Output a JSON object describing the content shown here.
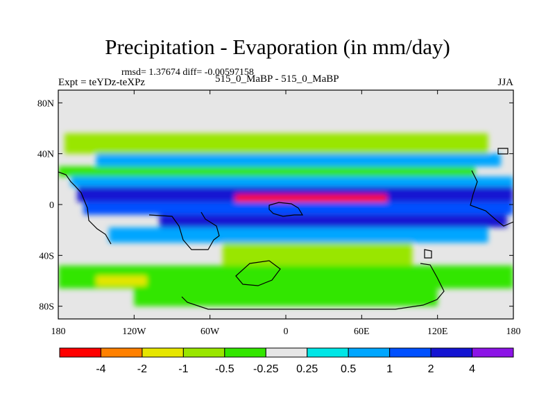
{
  "chart_data": {
    "type": "heatmap",
    "title": "Precipitation - Evaporation (in mm/day)",
    "stats_text": "rmsd= 1.37674 diff= -0.00597158",
    "experiment_label": "Expt = teYDz-teXPz",
    "case_label": "515_0_MaBP - 515_0_MaBP",
    "season_label": "JJA",
    "x_range": [
      -180,
      180
    ],
    "y_range": [
      -90,
      90
    ],
    "x_ticks": [
      {
        "value": -180,
        "label": "180"
      },
      {
        "value": -120,
        "label": "120W"
      },
      {
        "value": -60,
        "label": "60W"
      },
      {
        "value": 0,
        "label": "0"
      },
      {
        "value": 60,
        "label": "60E"
      },
      {
        "value": 120,
        "label": "120E"
      },
      {
        "value": 180,
        "label": "180"
      }
    ],
    "y_ticks": [
      {
        "value": 80,
        "label": "80N"
      },
      {
        "value": 40,
        "label": "40N"
      },
      {
        "value": 0,
        "label": "0"
      },
      {
        "value": -40,
        "label": "40S"
      },
      {
        "value": -80,
        "label": "80S"
      }
    ],
    "levels": [
      "-4",
      "-2",
      "-1",
      "-0.5",
      "-0.25",
      "0.25",
      "0.5",
      "1",
      "2",
      "4"
    ],
    "colors": [
      "#ff0000",
      "#ff8000",
      "#e6e600",
      "#99e600",
      "#33e600",
      "#e6e6e6",
      "#00e6e6",
      "#00a6ff",
      "#0050ff",
      "#1414d2",
      "#8c14e6"
    ],
    "background_color": "#e6e6e6",
    "bands": [
      {
        "lat": [
          56,
          40
        ],
        "value": -0.7,
        "extent": [
          -175,
          160
        ]
      },
      {
        "lat": [
          40,
          30
        ],
        "value": 0.7,
        "extent": [
          -150,
          170
        ]
      },
      {
        "lat": [
          30,
          22
        ],
        "value": -0.4,
        "extent": [
          -180,
          150
        ]
      },
      {
        "lat": [
          22,
          14
        ],
        "value": 0.8,
        "extent": [
          -170,
          180
        ]
      },
      {
        "lat": [
          14,
          2
        ],
        "value": 2.5,
        "extent": [
          -165,
          180
        ]
      },
      {
        "lat": [
          8,
          -4
        ],
        "value": -5,
        "extent": [
          -40,
          80
        ]
      },
      {
        "lat": [
          2,
          -8
        ],
        "value": 1.5,
        "extent": [
          -160,
          180
        ]
      },
      {
        "lat": [
          -8,
          -18
        ],
        "value": 2.8,
        "extent": [
          -100,
          175
        ]
      },
      {
        "lat": [
          -18,
          -30
        ],
        "value": 0.7,
        "extent": [
          -140,
          160
        ]
      },
      {
        "lat": [
          -30,
          -48
        ],
        "value": -0.8,
        "extent": [
          -50,
          100
        ]
      },
      {
        "lat": [
          -48,
          -66
        ],
        "value": -0.4,
        "extent": [
          -180,
          180
        ]
      },
      {
        "lat": [
          -56,
          -64
        ],
        "value": -1.3,
        "extent": [
          -150,
          -110
        ]
      },
      {
        "lat": [
          -66,
          -80
        ],
        "value": -0.4,
        "extent": [
          -120,
          120
        ]
      }
    ]
  }
}
